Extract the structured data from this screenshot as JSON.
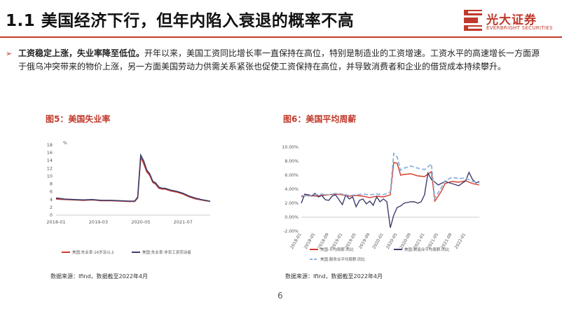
{
  "header": {
    "title": "1.1 美国经济下行，但年内陷入衰退的概率不高",
    "logo_cn": "光大证券",
    "logo_en": "EVERBRIGHT SECURITIES",
    "accent_color": "#c0392b"
  },
  "bullet": {
    "lead": "工资稳定上涨，失业率降至低位。",
    "body": "开年以来，美国工资同比增长率一直保持在高位，特别是制造业的工资增速。工资水平的高速增长一方面源于俄乌冲突带来的物价上涨，另一方面美国劳动力供需关系紧张也促使工资保持在高位，并导致消费者和企业的借贷成本持续攀升。"
  },
  "page_number": "6",
  "chart_data": [
    {
      "type": "line",
      "title": "图5：美国失业率",
      "unit_label": "%",
      "source": "数据来源：Ifind，数据截至2022年4月",
      "ylim": [
        0,
        18
      ],
      "yticks": [
        0,
        2,
        4,
        6,
        8,
        10,
        12,
        14,
        16,
        18
      ],
      "xlim": [
        0,
        51
      ],
      "xticks": [
        {
          "x": 0,
          "label": "2018-01"
        },
        {
          "x": 14,
          "label": "2019-03"
        },
        {
          "x": 28,
          "label": "2020-05"
        },
        {
          "x": 42,
          "label": "2021-07"
        }
      ],
      "legend_position": "bottom",
      "series": [
        {
          "name": "美国:失业率:16岁及以上",
          "color": "#d23a2a",
          "points": [
            [
              0,
              4.1
            ],
            [
              3,
              4.0
            ],
            [
              6,
              3.9
            ],
            [
              9,
              3.8
            ],
            [
              12,
              3.9
            ],
            [
              15,
              3.7
            ],
            [
              18,
              3.7
            ],
            [
              21,
              3.6
            ],
            [
              24,
              3.5
            ],
            [
              26,
              3.5
            ],
            [
              27,
              4.4
            ],
            [
              28,
              14.8
            ],
            [
              29,
              13.2
            ],
            [
              30,
              11.1
            ],
            [
              31,
              10.2
            ],
            [
              32,
              8.4
            ],
            [
              33,
              7.9
            ],
            [
              34,
              6.9
            ],
            [
              35,
              6.7
            ],
            [
              36,
              6.7
            ],
            [
              38,
              6.2
            ],
            [
              40,
              5.9
            ],
            [
              42,
              5.4
            ],
            [
              44,
              4.7
            ],
            [
              46,
              4.2
            ],
            [
              48,
              3.9
            ],
            [
              50,
              3.6
            ],
            [
              51,
              3.6
            ]
          ]
        },
        {
          "name": "美国:失业率:非农工资劳动者",
          "color": "#3d3d6b",
          "points": [
            [
              0,
              4.4
            ],
            [
              3,
              4.1
            ],
            [
              6,
              4.0
            ],
            [
              9,
              3.9
            ],
            [
              12,
              4.0
            ],
            [
              15,
              3.8
            ],
            [
              18,
              3.8
            ],
            [
              21,
              3.7
            ],
            [
              24,
              3.6
            ],
            [
              26,
              3.6
            ],
            [
              27,
              4.6
            ],
            [
              28,
              15.4
            ],
            [
              29,
              13.9
            ],
            [
              30,
              11.6
            ],
            [
              31,
              10.6
            ],
            [
              32,
              8.7
            ],
            [
              33,
              8.2
            ],
            [
              34,
              7.2
            ],
            [
              35,
              6.9
            ],
            [
              36,
              6.9
            ],
            [
              38,
              6.4
            ],
            [
              40,
              6.1
            ],
            [
              42,
              5.6
            ],
            [
              44,
              4.9
            ],
            [
              46,
              4.4
            ],
            [
              48,
              4.0
            ],
            [
              50,
              3.7
            ],
            [
              51,
              3.5
            ]
          ]
        }
      ]
    },
    {
      "type": "line",
      "title": "图6：美国平均周薪",
      "source": "数据来源：Ifind，数据截至2022年4月",
      "ylim": [
        -2,
        10
      ],
      "yticks": [
        -2,
        0,
        2,
        4,
        6,
        8,
        10
      ],
      "ytick_labels": [
        "-2.00%",
        "0.00%",
        "2.00%",
        "4.00%",
        "6.00%",
        "8.00%",
        "10.00%"
      ],
      "xlim": [
        0,
        52
      ],
      "xticks": [
        {
          "x": 0,
          "label": "2018-01"
        },
        {
          "x": 4,
          "label": "2018-05"
        },
        {
          "x": 8,
          "label": "2018-09"
        },
        {
          "x": 12,
          "label": "2019-01"
        },
        {
          "x": 16,
          "label": "2019-05"
        },
        {
          "x": 20,
          "label": "2019-09"
        },
        {
          "x": 24,
          "label": "2020-01"
        },
        {
          "x": 28,
          "label": "2020-05"
        },
        {
          "x": 32,
          "label": "2020-09"
        },
        {
          "x": 36,
          "label": "2021-01"
        },
        {
          "x": 40,
          "label": "2021-05"
        },
        {
          "x": 44,
          "label": "2021-09"
        },
        {
          "x": 48,
          "label": "2022-01"
        }
      ],
      "legend_position": "bottom",
      "series": [
        {
          "name": "美国:平均周薪:同比",
          "color": "#d23a2a",
          "dash": "",
          "points": [
            [
              0,
              2.9
            ],
            [
              2,
              3.2
            ],
            [
              4,
              3.0
            ],
            [
              6,
              3.1
            ],
            [
              8,
              3.2
            ],
            [
              10,
              3.3
            ],
            [
              12,
              3.2
            ],
            [
              14,
              3.0
            ],
            [
              16,
              3.1
            ],
            [
              18,
              3.0
            ],
            [
              20,
              2.8
            ],
            [
              22,
              3.0
            ],
            [
              24,
              2.9
            ],
            [
              26,
              3.2
            ],
            [
              27,
              7.8
            ],
            [
              28,
              7.7
            ],
            [
              29,
              6.0
            ],
            [
              30,
              6.1
            ],
            [
              32,
              6.2
            ],
            [
              34,
              5.9
            ],
            [
              36,
              5.8
            ],
            [
              38,
              6.5
            ],
            [
              39,
              2.3
            ],
            [
              40,
              3.0
            ],
            [
              41,
              3.8
            ],
            [
              42,
              4.8
            ],
            [
              44,
              5.1
            ],
            [
              46,
              5.0
            ],
            [
              48,
              5.2
            ],
            [
              50,
              4.8
            ],
            [
              52,
              4.6
            ]
          ]
        },
        {
          "name": "美国:制造业平均周薪:同比",
          "color": "#3d3d6b",
          "dash": "",
          "points": [
            [
              0,
              2.0
            ],
            [
              1,
              3.3
            ],
            [
              2,
              3.2
            ],
            [
              3,
              3.0
            ],
            [
              4,
              3.4
            ],
            [
              5,
              2.9
            ],
            [
              6,
              3.1
            ],
            [
              7,
              2.5
            ],
            [
              8,
              2.4
            ],
            [
              9,
              3.0
            ],
            [
              10,
              3.2
            ],
            [
              11,
              2.5
            ],
            [
              12,
              1.8
            ],
            [
              13,
              3.2
            ],
            [
              14,
              2.6
            ],
            [
              15,
              2.9
            ],
            [
              16,
              1.5
            ],
            [
              17,
              2.4
            ],
            [
              18,
              2.6
            ],
            [
              19,
              1.9
            ],
            [
              20,
              2.3
            ],
            [
              21,
              1.7
            ],
            [
              22,
              2.9
            ],
            [
              23,
              2.2
            ],
            [
              24,
              2.6
            ],
            [
              25,
              2.2
            ],
            [
              26,
              -1.5
            ],
            [
              27,
              0.3
            ],
            [
              28,
              1.4
            ],
            [
              29,
              1.6
            ],
            [
              30,
              2.0
            ],
            [
              31,
              2.1
            ],
            [
              32,
              2.2
            ],
            [
              33,
              2.2
            ],
            [
              34,
              2.0
            ],
            [
              35,
              2.2
            ],
            [
              36,
              3.2
            ],
            [
              37,
              6.3
            ],
            [
              38,
              5.4
            ],
            [
              39,
              5.0
            ],
            [
              40,
              4.6
            ],
            [
              42,
              5.1
            ],
            [
              44,
              4.8
            ],
            [
              46,
              4.5
            ],
            [
              48,
              5.2
            ],
            [
              49,
              6.4
            ],
            [
              50,
              5.4
            ],
            [
              51,
              4.9
            ],
            [
              52,
              5.1
            ]
          ]
        },
        {
          "name": "美国:服务业平均周薪:同比",
          "color": "#8fb3d9",
          "dash": "6,3",
          "points": [
            [
              0,
              3.1
            ],
            [
              2,
              3.0
            ],
            [
              4,
              3.2
            ],
            [
              6,
              3.3
            ],
            [
              8,
              3.2
            ],
            [
              10,
              3.4
            ],
            [
              12,
              3.3
            ],
            [
              14,
              3.1
            ],
            [
              16,
              3.2
            ],
            [
              18,
              3.3
            ],
            [
              20,
              3.2
            ],
            [
              22,
              3.3
            ],
            [
              24,
              3.2
            ],
            [
              26,
              3.6
            ],
            [
              27,
              9.1
            ],
            [
              28,
              8.6
            ],
            [
              29,
              6.7
            ],
            [
              30,
              7.0
            ],
            [
              32,
              7.3
            ],
            [
              34,
              7.0
            ],
            [
              36,
              6.8
            ],
            [
              38,
              7.6
            ],
            [
              39,
              2.7
            ],
            [
              40,
              3.5
            ],
            [
              41,
              4.3
            ],
            [
              42,
              5.2
            ],
            [
              44,
              5.7
            ],
            [
              46,
              5.5
            ],
            [
              48,
              5.6
            ],
            [
              50,
              5.1
            ],
            [
              52,
              4.9
            ]
          ]
        }
      ]
    }
  ]
}
